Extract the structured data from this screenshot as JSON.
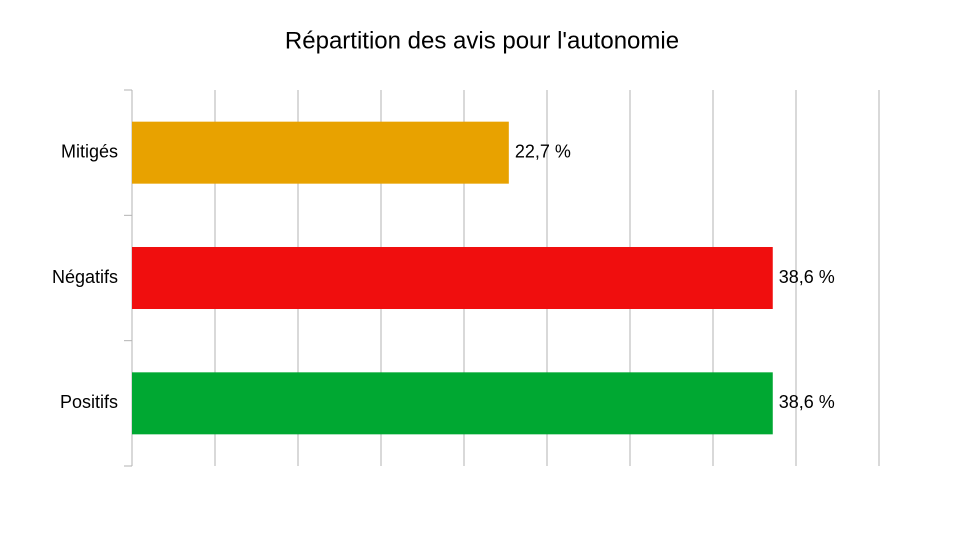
{
  "chart_data": {
    "type": "bar",
    "orientation": "horizontal",
    "title": "Répartition des avis pour l'autonomie",
    "categories": [
      "Mitigés",
      "Négatifs",
      "Positifs"
    ],
    "values": [
      22.7,
      38.6,
      38.6
    ],
    "value_labels": [
      "22,7 %",
      "38,6 %",
      "38,6 %"
    ],
    "colors": [
      "#e8a200",
      "#f00e0e",
      "#00a832"
    ],
    "xlim": [
      0,
      45
    ],
    "xticks": [
      0,
      5,
      10,
      15,
      20,
      25,
      30,
      35,
      40,
      45
    ],
    "grid": true
  }
}
